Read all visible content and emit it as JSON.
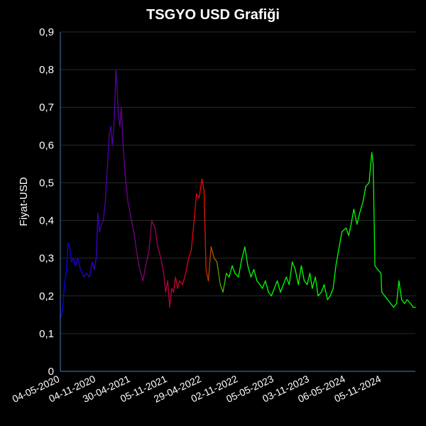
{
  "chart_data": {
    "type": "line",
    "title": "TSGYO USD Grafiği",
    "xlabel": "",
    "ylabel": "Fiyat-USD",
    "ylim": [
      0,
      0.9
    ],
    "yticks": [
      "0",
      "0,1",
      "0,2",
      "0,3",
      "0,4",
      "0,5",
      "0,6",
      "0,7",
      "0,8",
      "0,9"
    ],
    "xticks": [
      "04-05-2020",
      "04-11-2020",
      "30-04-2021",
      "05-11-2021",
      "29-04-2022",
      "02-11-2022",
      "05-05-2023",
      "03-11-2023",
      "06-05-2024",
      "05-11-2024"
    ],
    "x_range": [
      "04-05-2020",
      "26-04-2025"
    ],
    "grid": "horizontal",
    "line_color_gradient": [
      "#0000ff",
      "#800080",
      "#ff0000",
      "#00ff00"
    ],
    "axis_color": "#4a7ab5",
    "grid_color": "#2a2a2a",
    "series": [
      {
        "points": [
          [
            "04-05-2020",
            0.14
          ],
          [
            "15-05-2020",
            0.16
          ],
          [
            "25-05-2020",
            0.23
          ],
          [
            "05-06-2020",
            0.27
          ],
          [
            "12-06-2020",
            0.34
          ],
          [
            "20-06-2020",
            0.33
          ],
          [
            "01-07-2020",
            0.29
          ],
          [
            "10-07-2020",
            0.3
          ],
          [
            "20-07-2020",
            0.28
          ],
          [
            "01-08-2020",
            0.3
          ],
          [
            "15-08-2020",
            0.27
          ],
          [
            "01-09-2020",
            0.25
          ],
          [
            "15-09-2020",
            0.26
          ],
          [
            "01-10-2020",
            0.25
          ],
          [
            "15-10-2020",
            0.29
          ],
          [
            "25-10-2020",
            0.27
          ],
          [
            "04-11-2020",
            0.3
          ],
          [
            "12-11-2020",
            0.42
          ],
          [
            "20-11-2020",
            0.37
          ],
          [
            "01-12-2020",
            0.39
          ],
          [
            "10-12-2020",
            0.4
          ],
          [
            "20-12-2020",
            0.45
          ],
          [
            "01-01-2021",
            0.55
          ],
          [
            "10-01-2021",
            0.63
          ],
          [
            "18-01-2021",
            0.65
          ],
          [
            "25-01-2021",
            0.6
          ],
          [
            "01-02-2021",
            0.64
          ],
          [
            "08-02-2021",
            0.72
          ],
          [
            "12-02-2021",
            0.8
          ],
          [
            "18-02-2021",
            0.76
          ],
          [
            "25-02-2021",
            0.68
          ],
          [
            "05-03-2021",
            0.65
          ],
          [
            "12-03-2021",
            0.7
          ],
          [
            "20-03-2021",
            0.61
          ],
          [
            "01-04-2021",
            0.52
          ],
          [
            "15-04-2021",
            0.45
          ],
          [
            "30-04-2021",
            0.41
          ],
          [
            "15-05-2021",
            0.37
          ],
          [
            "01-06-2021",
            0.31
          ],
          [
            "15-06-2021",
            0.27
          ],
          [
            "01-07-2021",
            0.24
          ],
          [
            "15-07-2021",
            0.28
          ],
          [
            "01-08-2021",
            0.32
          ],
          [
            "15-08-2021",
            0.4
          ],
          [
            "01-09-2021",
            0.38
          ],
          [
            "15-09-2021",
            0.33
          ],
          [
            "01-10-2021",
            0.3
          ],
          [
            "15-10-2021",
            0.26
          ],
          [
            "25-10-2021",
            0.21
          ],
          [
            "05-11-2021",
            0.24
          ],
          [
            "15-11-2021",
            0.17
          ],
          [
            "25-11-2021",
            0.22
          ],
          [
            "05-12-2021",
            0.21
          ],
          [
            "15-12-2021",
            0.25
          ],
          [
            "25-12-2021",
            0.22
          ],
          [
            "05-01-2022",
            0.24
          ],
          [
            "20-01-2022",
            0.23
          ],
          [
            "05-02-2022",
            0.26
          ],
          [
            "20-02-2022",
            0.3
          ],
          [
            "05-03-2022",
            0.32
          ],
          [
            "20-03-2022",
            0.4
          ],
          [
            "01-04-2022",
            0.47
          ],
          [
            "15-04-2022",
            0.46
          ],
          [
            "29-04-2022",
            0.51
          ],
          [
            "10-05-2022",
            0.48
          ],
          [
            "20-05-2022",
            0.27
          ],
          [
            "01-06-2022",
            0.24
          ],
          [
            "15-06-2022",
            0.33
          ],
          [
            "01-07-2022",
            0.3
          ],
          [
            "15-07-2022",
            0.29
          ],
          [
            "01-08-2022",
            0.23
          ],
          [
            "15-08-2022",
            0.21
          ],
          [
            "01-09-2022",
            0.26
          ],
          [
            "15-09-2022",
            0.25
          ],
          [
            "01-10-2022",
            0.28
          ],
          [
            "15-10-2022",
            0.26
          ],
          [
            "02-11-2022",
            0.25
          ],
          [
            "20-11-2022",
            0.3
          ],
          [
            "05-12-2022",
            0.33
          ],
          [
            "20-12-2022",
            0.28
          ],
          [
            "05-01-2023",
            0.25
          ],
          [
            "20-01-2023",
            0.27
          ],
          [
            "05-02-2023",
            0.24
          ],
          [
            "20-02-2023",
            0.23
          ],
          [
            "05-03-2023",
            0.22
          ],
          [
            "20-03-2023",
            0.24
          ],
          [
            "05-04-2023",
            0.21
          ],
          [
            "20-04-2023",
            0.2
          ],
          [
            "05-05-2023",
            0.22
          ],
          [
            "20-05-2023",
            0.24
          ],
          [
            "05-06-2023",
            0.21
          ],
          [
            "20-06-2023",
            0.23
          ],
          [
            "05-07-2023",
            0.25
          ],
          [
            "20-07-2023",
            0.23
          ],
          [
            "05-08-2023",
            0.29
          ],
          [
            "20-08-2023",
            0.27
          ],
          [
            "05-09-2023",
            0.23
          ],
          [
            "20-09-2023",
            0.28
          ],
          [
            "05-10-2023",
            0.24
          ],
          [
            "20-10-2023",
            0.23
          ],
          [
            "03-11-2023",
            0.26
          ],
          [
            "15-11-2023",
            0.22
          ],
          [
            "01-12-2023",
            0.25
          ],
          [
            "15-12-2023",
            0.2
          ],
          [
            "01-01-2024",
            0.21
          ],
          [
            "15-01-2024",
            0.23
          ],
          [
            "01-02-2024",
            0.19
          ],
          [
            "15-02-2024",
            0.2
          ],
          [
            "01-03-2024",
            0.22
          ],
          [
            "15-03-2024",
            0.28
          ],
          [
            "01-04-2024",
            0.33
          ],
          [
            "15-04-2024",
            0.37
          ],
          [
            "06-05-2024",
            0.38
          ],
          [
            "20-05-2024",
            0.36
          ],
          [
            "01-06-2024",
            0.39
          ],
          [
            "15-06-2024",
            0.43
          ],
          [
            "01-07-2024",
            0.39
          ],
          [
            "15-07-2024",
            0.42
          ],
          [
            "01-08-2024",
            0.45
          ],
          [
            "15-08-2024",
            0.49
          ],
          [
            "01-09-2024",
            0.5
          ],
          [
            "15-09-2024",
            0.58
          ],
          [
            "22-09-2024",
            0.55
          ],
          [
            "01-10-2024",
            0.28
          ],
          [
            "15-10-2024",
            0.27
          ],
          [
            "01-11-2024",
            0.26
          ],
          [
            "05-11-2024",
            0.21
          ],
          [
            "20-11-2024",
            0.2
          ],
          [
            "05-12-2024",
            0.19
          ],
          [
            "20-12-2024",
            0.18
          ],
          [
            "05-01-2025",
            0.17
          ],
          [
            "20-01-2025",
            0.18
          ],
          [
            "01-02-2025",
            0.24
          ],
          [
            "15-02-2025",
            0.19
          ],
          [
            "01-03-2025",
            0.18
          ],
          [
            "15-03-2025",
            0.19
          ],
          [
            "01-04-2025",
            0.18
          ],
          [
            "15-04-2025",
            0.17
          ],
          [
            "26-04-2025",
            0.17
          ]
        ]
      }
    ]
  }
}
